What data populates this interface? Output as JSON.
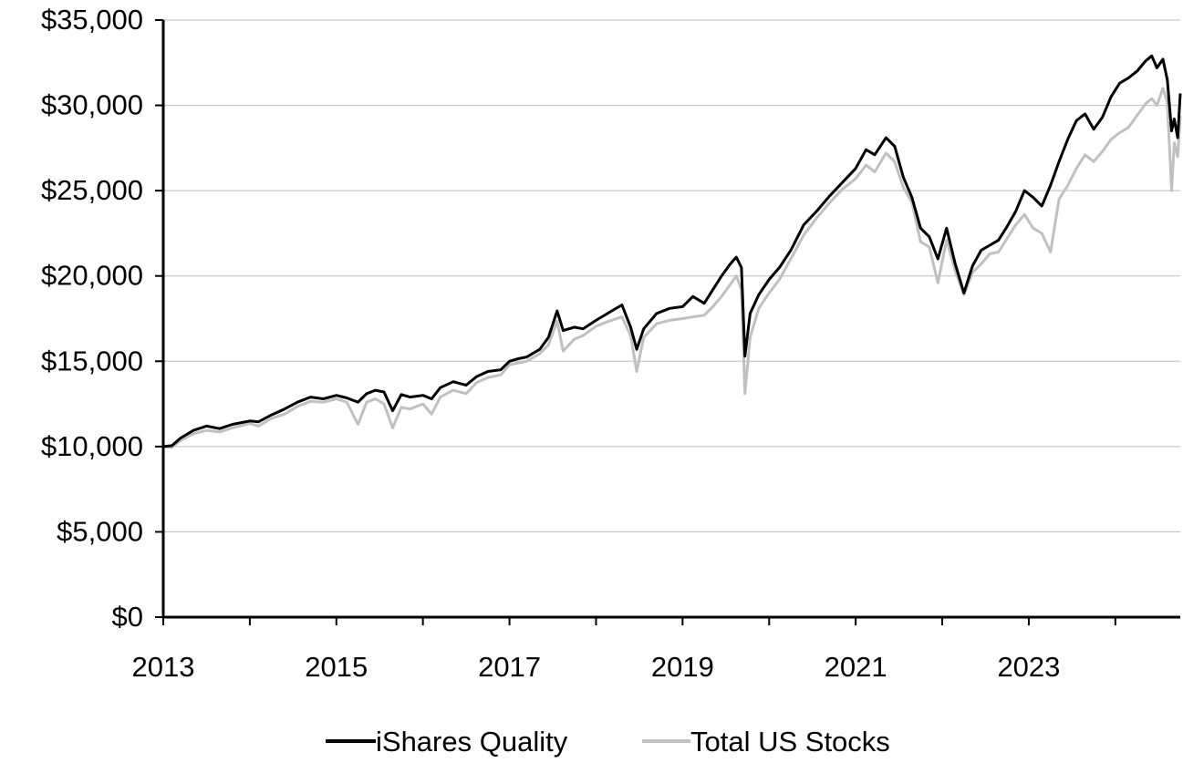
{
  "chart_data": {
    "type": "line",
    "title": "",
    "xlabel": "",
    "ylabel": "",
    "xlim": [
      2013.0,
      2024.75
    ],
    "ylim": [
      0,
      35000
    ],
    "grid": "horizontal",
    "legend_position": "bottom-center",
    "x_ticks": [
      {
        "value": 2013,
        "label": "2013"
      },
      {
        "value": 2015,
        "label": "2015"
      },
      {
        "value": 2017,
        "label": "2017"
      },
      {
        "value": 2019,
        "label": "2019"
      },
      {
        "value": 2021,
        "label": "2021"
      },
      {
        "value": 2023,
        "label": "2023"
      }
    ],
    "y_ticks": [
      {
        "value": 0,
        "label": "$0"
      },
      {
        "value": 5000,
        "label": "$5,000"
      },
      {
        "value": 10000,
        "label": "$10,000"
      },
      {
        "value": 15000,
        "label": "$15,000"
      },
      {
        "value": 20000,
        "label": "$20,000"
      },
      {
        "value": 25000,
        "label": "$25,000"
      },
      {
        "value": 30000,
        "label": "$30,000"
      },
      {
        "value": 35000,
        "label": "$35,000"
      }
    ],
    "series": [
      {
        "name": "iShares Quality",
        "color": "#000000",
        "points": [
          [
            2013.0,
            10000
          ],
          [
            2013.1,
            10050
          ],
          [
            2013.2,
            10500
          ],
          [
            2013.35,
            10950
          ],
          [
            2013.5,
            11200
          ],
          [
            2013.65,
            11050
          ],
          [
            2013.8,
            11300
          ],
          [
            2014.0,
            11500
          ],
          [
            2014.1,
            11450
          ],
          [
            2014.25,
            11850
          ],
          [
            2014.4,
            12200
          ],
          [
            2014.55,
            12600
          ],
          [
            2014.7,
            12900
          ],
          [
            2014.85,
            12800
          ],
          [
            2015.0,
            13000
          ],
          [
            2015.12,
            12850
          ],
          [
            2015.25,
            12600
          ],
          [
            2015.35,
            13100
          ],
          [
            2015.45,
            13300
          ],
          [
            2015.55,
            13200
          ],
          [
            2015.65,
            12100
          ],
          [
            2015.75,
            13050
          ],
          [
            2015.85,
            12900
          ],
          [
            2016.0,
            13000
          ],
          [
            2016.1,
            12800
          ],
          [
            2016.2,
            13450
          ],
          [
            2016.35,
            13800
          ],
          [
            2016.5,
            13600
          ],
          [
            2016.62,
            14100
          ],
          [
            2016.75,
            14400
          ],
          [
            2016.9,
            14500
          ],
          [
            2017.0,
            15000
          ],
          [
            2017.1,
            15150
          ],
          [
            2017.2,
            15250
          ],
          [
            2017.35,
            15700
          ],
          [
            2017.45,
            16400
          ],
          [
            2017.55,
            17950
          ],
          [
            2017.62,
            16800
          ],
          [
            2017.75,
            17000
          ],
          [
            2017.85,
            16900
          ],
          [
            2018.0,
            17400
          ],
          [
            2018.15,
            17850
          ],
          [
            2018.3,
            18300
          ],
          [
            2018.4,
            17000
          ],
          [
            2018.47,
            15700
          ],
          [
            2018.55,
            16900
          ],
          [
            2018.7,
            17800
          ],
          [
            2018.85,
            18100
          ],
          [
            2019.0,
            18200
          ],
          [
            2019.12,
            18800
          ],
          [
            2019.25,
            18400
          ],
          [
            2019.35,
            19200
          ],
          [
            2019.45,
            20000
          ],
          [
            2019.55,
            20700
          ],
          [
            2019.62,
            21100
          ],
          [
            2019.68,
            20500
          ],
          [
            2019.72,
            15300
          ],
          [
            2019.78,
            17800
          ],
          [
            2019.88,
            18900
          ],
          [
            2020.0,
            19800
          ],
          [
            2020.12,
            20500
          ],
          [
            2020.25,
            21500
          ],
          [
            2020.4,
            23000
          ],
          [
            2020.55,
            23800
          ],
          [
            2020.7,
            24700
          ],
          [
            2020.85,
            25500
          ],
          [
            2021.0,
            26300
          ],
          [
            2021.12,
            27400
          ],
          [
            2021.22,
            27100
          ],
          [
            2021.35,
            28100
          ],
          [
            2021.45,
            27600
          ],
          [
            2021.55,
            25800
          ],
          [
            2021.65,
            24600
          ],
          [
            2021.75,
            22800
          ],
          [
            2021.85,
            22300
          ],
          [
            2021.95,
            21000
          ],
          [
            2022.05,
            22800
          ],
          [
            2022.15,
            20700
          ],
          [
            2022.25,
            19000
          ],
          [
            2022.35,
            20600
          ],
          [
            2022.45,
            21500
          ],
          [
            2022.55,
            21800
          ],
          [
            2022.65,
            22100
          ],
          [
            2022.75,
            22900
          ],
          [
            2022.85,
            23800
          ],
          [
            2022.95,
            25000
          ],
          [
            2023.05,
            24600
          ],
          [
            2023.15,
            24100
          ],
          [
            2023.25,
            25300
          ],
          [
            2023.35,
            26700
          ],
          [
            2023.45,
            28000
          ],
          [
            2023.55,
            29100
          ],
          [
            2023.65,
            29500
          ],
          [
            2023.75,
            28600
          ],
          [
            2023.85,
            29300
          ],
          [
            2023.95,
            30500
          ],
          [
            2024.05,
            31300
          ],
          [
            2024.15,
            31600
          ],
          [
            2024.25,
            32000
          ],
          [
            2024.35,
            32600
          ],
          [
            2024.42,
            32900
          ],
          [
            2024.48,
            32200
          ],
          [
            2024.55,
            32700
          ],
          [
            2024.6,
            31500
          ],
          [
            2024.65,
            28500
          ],
          [
            2024.68,
            29200
          ],
          [
            2024.72,
            28100
          ],
          [
            2024.75,
            30700
          ]
        ]
      },
      {
        "name": "Total US Stocks",
        "color": "#c0c0c0",
        "points": [
          [
            2013.0,
            10000
          ],
          [
            2013.1,
            9950
          ],
          [
            2013.2,
            10350
          ],
          [
            2013.35,
            10750
          ],
          [
            2013.5,
            10950
          ],
          [
            2013.65,
            10850
          ],
          [
            2013.8,
            11100
          ],
          [
            2014.0,
            11350
          ],
          [
            2014.1,
            11200
          ],
          [
            2014.25,
            11650
          ],
          [
            2014.4,
            11900
          ],
          [
            2014.55,
            12350
          ],
          [
            2014.7,
            12650
          ],
          [
            2014.85,
            12600
          ],
          [
            2015.0,
            12800
          ],
          [
            2015.12,
            12600
          ],
          [
            2015.25,
            11300
          ],
          [
            2015.35,
            12600
          ],
          [
            2015.45,
            12800
          ],
          [
            2015.55,
            12500
          ],
          [
            2015.65,
            11100
          ],
          [
            2015.75,
            12300
          ],
          [
            2015.85,
            12200
          ],
          [
            2016.0,
            12500
          ],
          [
            2016.1,
            11900
          ],
          [
            2016.2,
            12900
          ],
          [
            2016.35,
            13300
          ],
          [
            2016.5,
            13100
          ],
          [
            2016.62,
            13750
          ],
          [
            2016.75,
            14050
          ],
          [
            2016.9,
            14200
          ],
          [
            2017.0,
            14800
          ],
          [
            2017.1,
            14900
          ],
          [
            2017.2,
            15000
          ],
          [
            2017.35,
            15450
          ],
          [
            2017.45,
            15950
          ],
          [
            2017.55,
            17350
          ],
          [
            2017.62,
            15600
          ],
          [
            2017.75,
            16300
          ],
          [
            2017.85,
            16500
          ],
          [
            2018.0,
            17050
          ],
          [
            2018.15,
            17350
          ],
          [
            2018.3,
            17600
          ],
          [
            2018.4,
            16500
          ],
          [
            2018.47,
            14400
          ],
          [
            2018.55,
            16400
          ],
          [
            2018.7,
            17200
          ],
          [
            2018.85,
            17400
          ],
          [
            2019.0,
            17500
          ],
          [
            2019.12,
            17600
          ],
          [
            2019.25,
            17700
          ],
          [
            2019.35,
            18200
          ],
          [
            2019.45,
            18800
          ],
          [
            2019.55,
            19500
          ],
          [
            2019.62,
            20000
          ],
          [
            2019.68,
            19200
          ],
          [
            2019.72,
            13100
          ],
          [
            2019.78,
            16400
          ],
          [
            2019.88,
            18100
          ],
          [
            2020.0,
            19000
          ],
          [
            2020.12,
            19800
          ],
          [
            2020.25,
            21000
          ],
          [
            2020.4,
            22400
          ],
          [
            2020.55,
            23400
          ],
          [
            2020.7,
            24300
          ],
          [
            2020.85,
            25100
          ],
          [
            2021.0,
            25700
          ],
          [
            2021.12,
            26500
          ],
          [
            2021.22,
            26100
          ],
          [
            2021.35,
            27200
          ],
          [
            2021.45,
            26700
          ],
          [
            2021.55,
            25200
          ],
          [
            2021.65,
            24300
          ],
          [
            2021.75,
            22000
          ],
          [
            2021.85,
            21700
          ],
          [
            2021.95,
            19600
          ],
          [
            2022.05,
            22100
          ],
          [
            2022.15,
            20300
          ],
          [
            2022.25,
            18900
          ],
          [
            2022.35,
            20200
          ],
          [
            2022.45,
            20700
          ],
          [
            2022.55,
            21300
          ],
          [
            2022.65,
            21400
          ],
          [
            2022.75,
            22200
          ],
          [
            2022.85,
            23000
          ],
          [
            2022.95,
            23600
          ],
          [
            2023.05,
            22800
          ],
          [
            2023.15,
            22500
          ],
          [
            2023.25,
            21400
          ],
          [
            2023.35,
            24500
          ],
          [
            2023.45,
            25300
          ],
          [
            2023.55,
            26300
          ],
          [
            2023.65,
            27100
          ],
          [
            2023.75,
            26700
          ],
          [
            2023.85,
            27300
          ],
          [
            2023.95,
            28000
          ],
          [
            2024.05,
            28400
          ],
          [
            2024.15,
            28700
          ],
          [
            2024.25,
            29400
          ],
          [
            2024.35,
            30100
          ],
          [
            2024.42,
            30400
          ],
          [
            2024.48,
            30000
          ],
          [
            2024.55,
            31000
          ],
          [
            2024.6,
            30200
          ],
          [
            2024.65,
            25000
          ],
          [
            2024.68,
            27800
          ],
          [
            2024.72,
            27000
          ],
          [
            2024.75,
            29400
          ]
        ]
      }
    ]
  }
}
